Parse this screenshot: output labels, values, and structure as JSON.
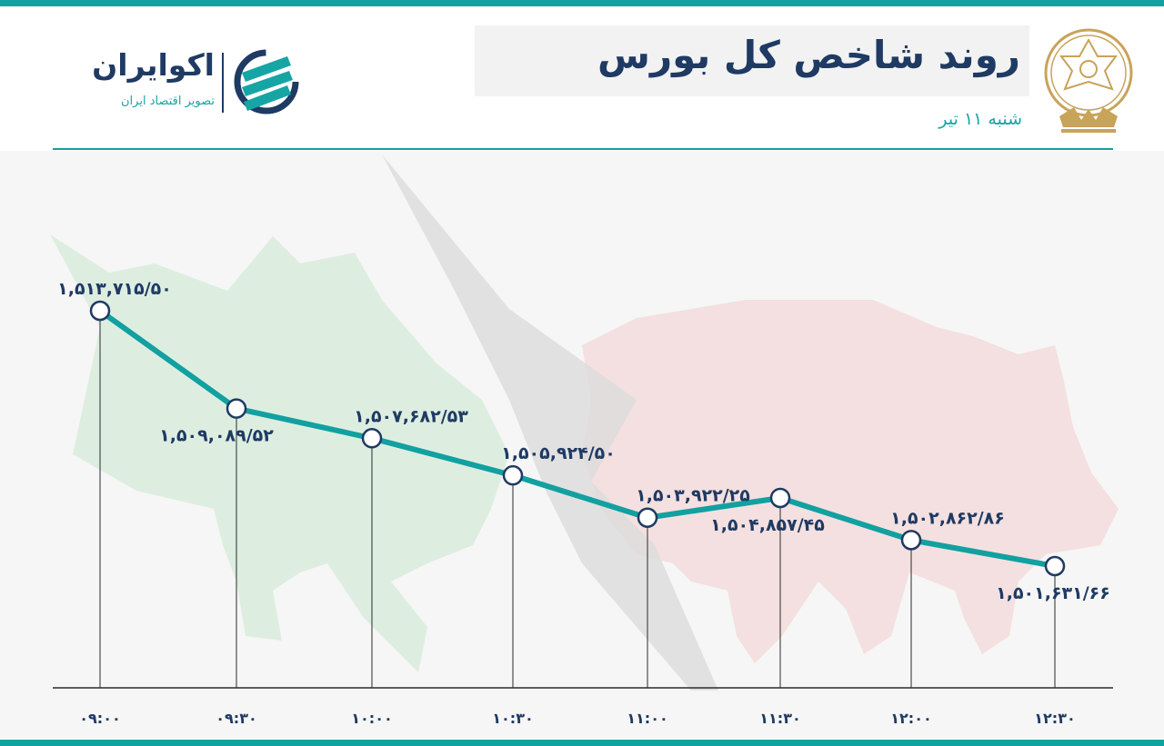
{
  "header": {
    "title": "روند شاخص کل بورس",
    "date": "شنبه ۱۱ تیر"
  },
  "brand": {
    "name": "اکوایران",
    "tagline": "تصویر اقتصاد ایران"
  },
  "colors": {
    "accent": "#12a0a0",
    "text": "#1f3a63",
    "bull": "#c9e7cf",
    "bear": "#f3cdcd"
  },
  "chart_data": {
    "type": "line",
    "x": [
      "۰۹:۰۰",
      "۰۹:۳۰",
      "۱۰:۰۰",
      "۱۰:۳۰",
      "۱۱:۰۰",
      "۱۱:۳۰",
      "۱۲:۰۰",
      "۱۲:۳۰"
    ],
    "values": [
      1513715.5,
      1509089.52,
      1507682.53,
      1505924.5,
      1503922.25,
      1504857.45,
      1502862.86,
      1501631.66
    ],
    "labels": [
      "۱,۵۱۳,۷۱۵/۵۰",
      "۱,۵۰۹,۰۸۹/۵۲",
      "۱,۵۰۷,۶۸۲/۵۳",
      "۱,۵۰۵,۹۲۴/۵۰",
      "۱,۵۰۳,۹۲۲/۲۵",
      "۱,۵۰۴,۸۵۷/۴۵",
      "۱,۵۰۲,۸۶۲/۸۶",
      "۱,۵۰۱,۶۳۱/۶۶"
    ],
    "label_position": [
      "above",
      "below",
      "above",
      "above",
      "above",
      "below",
      "above",
      "below"
    ],
    "title": "روند شاخص کل بورس",
    "xlabel": "",
    "ylabel": "",
    "grid": false,
    "legend": "none"
  }
}
